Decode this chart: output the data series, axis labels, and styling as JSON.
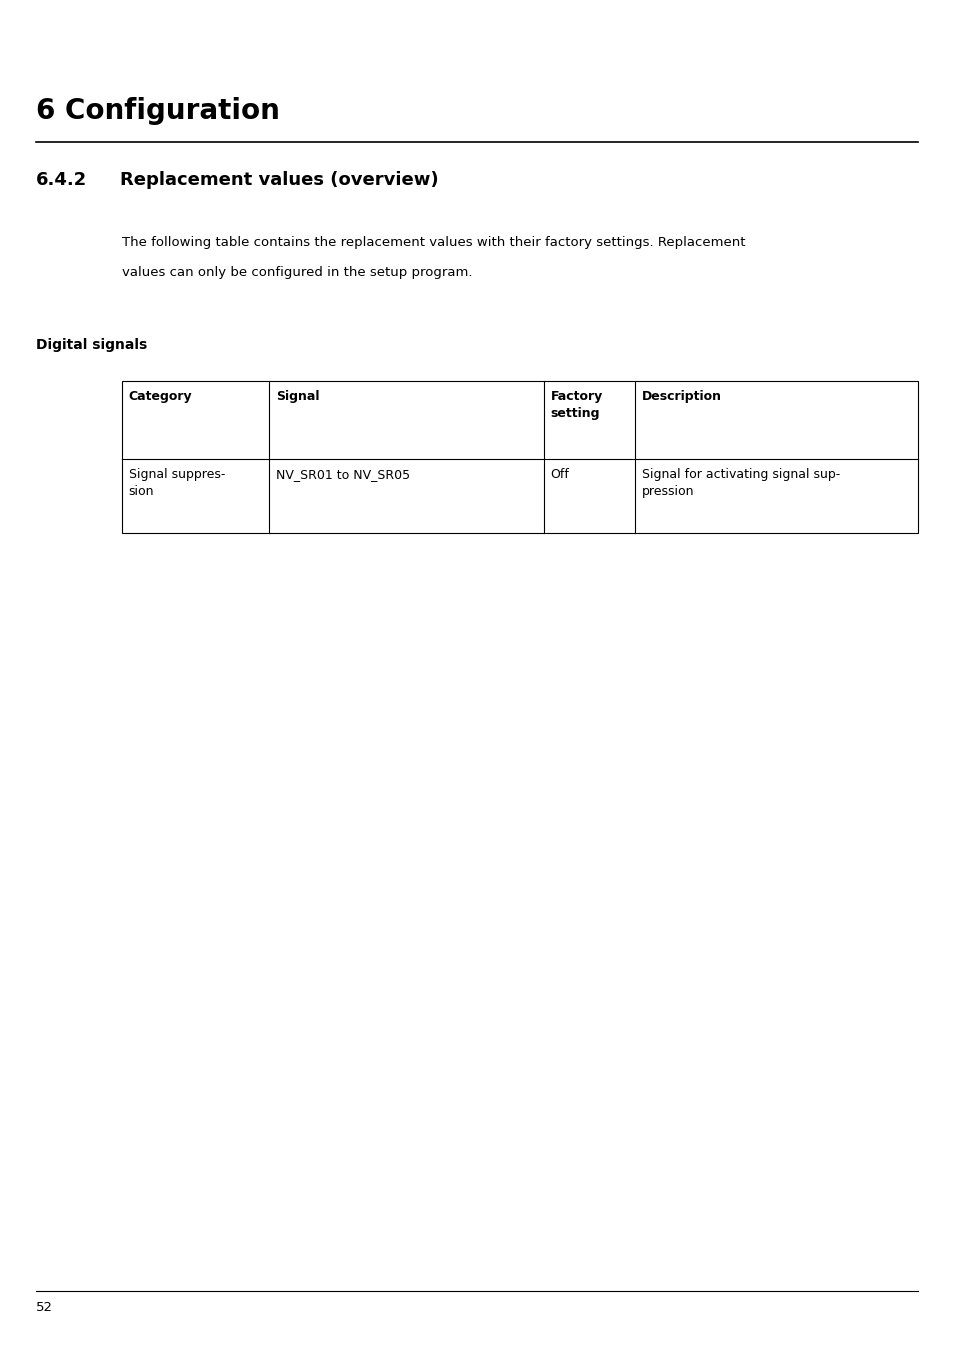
{
  "page_bg": "#ffffff",
  "chapter_title": "6 Configuration",
  "section_number": "6.4.2",
  "section_title": "Replacement values (overview)",
  "body_text_line1": "The following table contains the replacement values with their factory settings. Replacement",
  "body_text_line2": "values can only be configured in the setup program.",
  "subsection_title": "Digital signals",
  "table_headers": [
    "Category",
    "Signal",
    "Factory\nsetting",
    "Description"
  ],
  "table_row1": [
    "Signal suppres-\nsion",
    "NV_SR01 to NV_SR05",
    "Off",
    "Signal for activating signal sup-\npression"
  ],
  "page_number": "52"
}
